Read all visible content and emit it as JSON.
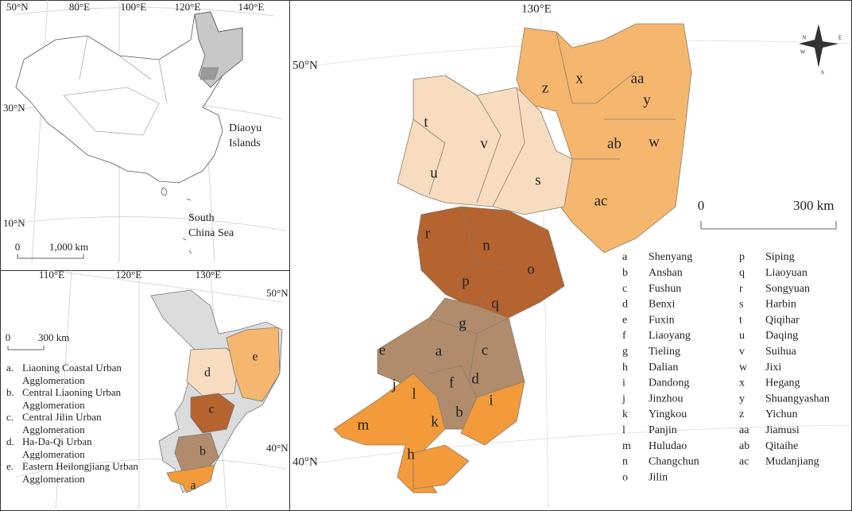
{
  "inset_china": {
    "lon_labels": [
      "80°E",
      "100°E",
      "120°E",
      "140°E"
    ],
    "lat_labels": [
      "50°N",
      "30°N",
      "10°N"
    ],
    "annotations": [
      "Diaoyu",
      "Islands",
      "South",
      "China Sea"
    ],
    "scale": [
      "0",
      "1,000 km"
    ]
  },
  "inset_region": {
    "lon_labels": [
      "110°E",
      "120°E",
      "130°E"
    ],
    "lat_labels": [
      "50°N",
      "40°N"
    ],
    "scale": [
      "0",
      "300 km"
    ],
    "map_labels": [
      "a",
      "b",
      "c",
      "d",
      "e"
    ],
    "legend": [
      {
        "key": "a.",
        "label": "Liaoning Coastal Urban Agglomeration"
      },
      {
        "key": "b.",
        "label": "Central Liaoning Urban Agglomeration"
      },
      {
        "key": "c.",
        "label": "Central Jilin Urban Agglomeration"
      },
      {
        "key": "d.",
        "label": "Ha-Da-Qi Urban Agglomeration"
      },
      {
        "key": "e.",
        "label": "Eastern Heilongjiang Urban Agglomeration"
      }
    ]
  },
  "main_map": {
    "lon_labels": [
      "130°E"
    ],
    "lat_labels": [
      "50°N",
      "40°N"
    ],
    "scale": [
      "0",
      "300 km"
    ],
    "compass": [
      "N",
      "E",
      "S",
      "W"
    ],
    "cities": [
      {
        "code": "a",
        "name": "Shenyang"
      },
      {
        "code": "b",
        "name": "Anshan"
      },
      {
        "code": "c",
        "name": "Fushun"
      },
      {
        "code": "d",
        "name": "Benxi"
      },
      {
        "code": "e",
        "name": "Fuxin"
      },
      {
        "code": "f",
        "name": "Liaoyang"
      },
      {
        "code": "g",
        "name": "Tieling"
      },
      {
        "code": "h",
        "name": "Dalian"
      },
      {
        "code": "i",
        "name": "Dandong"
      },
      {
        "code": "j",
        "name": "Jinzhou"
      },
      {
        "code": "k",
        "name": "Yingkou"
      },
      {
        "code": "l",
        "name": "Panjin"
      },
      {
        "code": "m",
        "name": "Huludao"
      },
      {
        "code": "n",
        "name": "Changchun"
      },
      {
        "code": "o",
        "name": "Jilin"
      },
      {
        "code": "p",
        "name": "Siping"
      },
      {
        "code": "q",
        "name": "Liaoyuan"
      },
      {
        "code": "r",
        "name": "Songyuan"
      },
      {
        "code": "s",
        "name": "Harbin"
      },
      {
        "code": "t",
        "name": "Qiqihar"
      },
      {
        "code": "u",
        "name": "Daqing"
      },
      {
        "code": "v",
        "name": "Suihua"
      },
      {
        "code": "w",
        "name": "Jixi"
      },
      {
        "code": "x",
        "name": "Hegang"
      },
      {
        "code": "y",
        "name": "Shuangyashan"
      },
      {
        "code": "z",
        "name": "Yichun"
      },
      {
        "code": "aa",
        "name": "Jiamusi"
      },
      {
        "code": "ab",
        "name": "Qitaihe"
      },
      {
        "code": "ac",
        "name": "Mudanjiang"
      }
    ]
  }
}
